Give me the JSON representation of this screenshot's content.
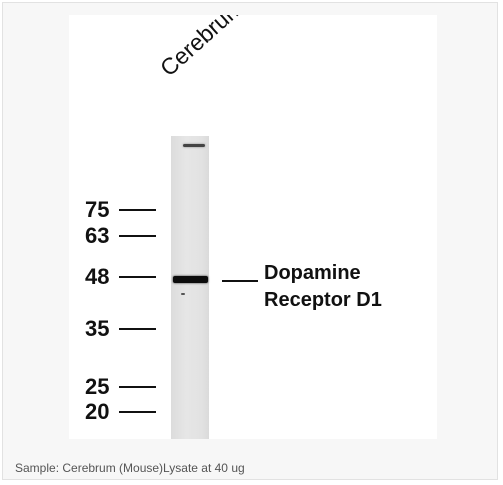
{
  "blot": {
    "sample_label": "Cerebrum",
    "markers": [
      "75",
      "63",
      "48",
      "35",
      "25",
      "20"
    ],
    "target_label_line1": "Dopamine",
    "target_label_line2": "Receptor D1"
  },
  "caption": "Sample: Cerebrum (Mouse)Lysate at 40 ug"
}
